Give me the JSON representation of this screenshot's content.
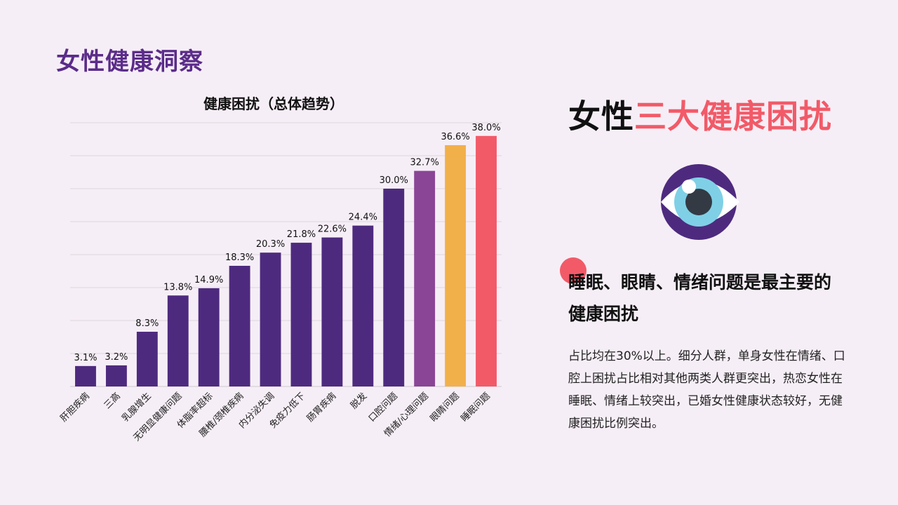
{
  "page": {
    "title": "女性健康洞察"
  },
  "right": {
    "title_part1": "女性",
    "title_part2": "三大健康困扰",
    "headline": "睡眠、眼睛、情绪问题是最主要的健康困扰",
    "description": "占比均在30%以上。细分人群，单身女性在情绪、口腔上困扰占比相对其他两类人群更突出，热恋女性在睡眠、情绪上较突出，已婚女性健康状态较好，无健康困扰比例突出。",
    "icon": "eye-icon"
  },
  "colors": {
    "title": "#5b2c8a",
    "bar_default": "#4e2a7f",
    "bar_emotion": "#8a4596",
    "bar_eye": "#f2b04a",
    "bar_sleep": "#f25a68",
    "accent_red": "#f25a68"
  },
  "chart_data": {
    "type": "bar",
    "title": "健康困扰（总体趋势）",
    "xlabel": "",
    "ylabel": "",
    "ylim": [
      0,
      40
    ],
    "grid": true,
    "categories": [
      "肝胆疾病",
      "三高",
      "乳腺增生",
      "无明显健康问题",
      "体脂率超标",
      "腰椎/颈椎疾病",
      "内分泌失调",
      "免疫力低下",
      "肠胃疾病",
      "脱发",
      "口腔问题",
      "情绪/心理问题",
      "眼睛问题",
      "睡眠问题"
    ],
    "values": [
      3.1,
      3.2,
      8.3,
      13.8,
      14.9,
      18.3,
      20.3,
      21.8,
      22.6,
      24.4,
      30.0,
      32.7,
      36.6,
      38.0
    ],
    "value_labels": [
      "3.1%",
      "3.2%",
      "8.3%",
      "13.8%",
      "14.9%",
      "18.3%",
      "20.3%",
      "21.8%",
      "22.6%",
      "24.4%",
      "30.0%",
      "32.7%",
      "36.6%",
      "38.0%"
    ],
    "bar_colors": [
      "#4e2a7f",
      "#4e2a7f",
      "#4e2a7f",
      "#4e2a7f",
      "#4e2a7f",
      "#4e2a7f",
      "#4e2a7f",
      "#4e2a7f",
      "#4e2a7f",
      "#4e2a7f",
      "#4e2a7f",
      "#8a4596",
      "#f2b04a",
      "#f25a68"
    ]
  }
}
